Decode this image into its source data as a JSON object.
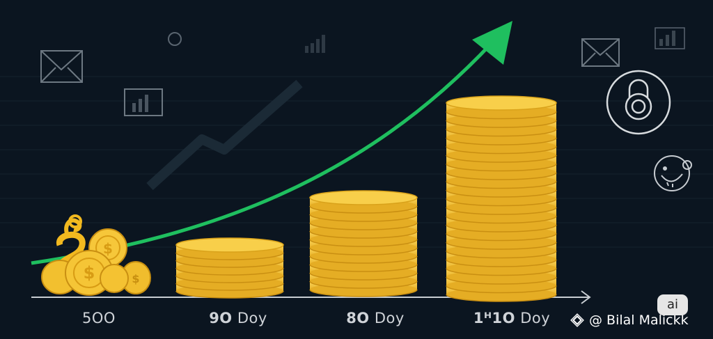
{
  "labels": {
    "stack_1": "5OO",
    "stack_2_num": "9O",
    "stack_2_unit": "Doy",
    "stack_3_num": "8O",
    "stack_3_unit": "Doy",
    "stack_4_num": "1ᴴ1O",
    "stack_4_unit": "Doy"
  },
  "watermark": {
    "credit": "@ Bilal Malickk",
    "badge": "ai"
  },
  "icons": {
    "mail": "envelope-icon",
    "chart": "mini-chart-icon",
    "lock": "padlock-icon",
    "piggy": "piggy-bank-icon",
    "brand": "binance-diamond-icon"
  },
  "colors": {
    "background": "#0b1520",
    "coin": "#f7c948",
    "coin_shadow": "#d9a21a",
    "arrow": "#1fbf5f"
  }
}
